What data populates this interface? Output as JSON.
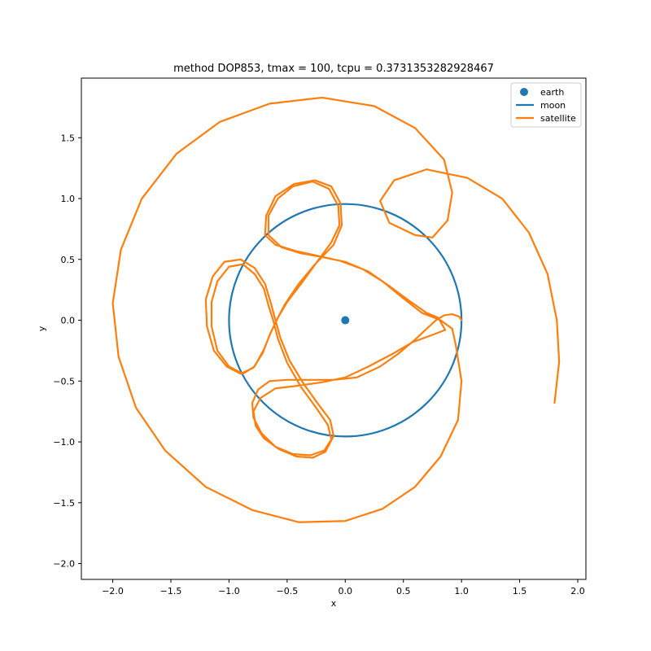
{
  "chart_data": {
    "type": "line",
    "title": "method DOP853, tmax = 100, tcpu = 0.3731353282928467",
    "xlabel": "x",
    "ylabel": "y",
    "xlim": [
      -2.27,
      2.07
    ],
    "ylim": [
      -2.13,
      1.99
    ],
    "x_ticks": [
      -2.0,
      -1.5,
      -1.0,
      -0.5,
      0.0,
      0.5,
      1.0,
      1.5,
      2.0
    ],
    "x_tick_labels": [
      "−2.0",
      "−1.5",
      "−1.0",
      "−0.5",
      "0.0",
      "0.5",
      "1.0",
      "1.5",
      "2.0"
    ],
    "y_ticks": [
      -2.0,
      -1.5,
      -1.0,
      -0.5,
      0.0,
      0.5,
      1.0,
      1.5
    ],
    "y_tick_labels": [
      "−2.0",
      "−1.5",
      "−1.0",
      "−0.5",
      "0.0",
      "0.5",
      "1.0",
      "1.5"
    ],
    "grid": false,
    "legend_position": "top-right",
    "series": [
      {
        "name": "earth",
        "kind": "scatter",
        "color": "#1f77b4",
        "points": [
          [
            0.0,
            0.0
          ]
        ]
      },
      {
        "name": "moon",
        "kind": "circle",
        "color": "#1f77b4",
        "center": [
          0.0,
          0.0
        ],
        "radius": 1.0
      },
      {
        "name": "satellite",
        "kind": "line",
        "color": "#ff7f0e",
        "points": [
          [
            1.0,
            0.0
          ],
          [
            0.98,
            0.03
          ],
          [
            0.92,
            0.05
          ],
          [
            0.85,
            0.04
          ],
          [
            0.78,
            0.0
          ],
          [
            0.7,
            -0.07
          ],
          [
            0.6,
            -0.16
          ],
          [
            0.45,
            -0.28
          ],
          [
            0.3,
            -0.38
          ],
          [
            0.1,
            -0.47
          ],
          [
            -0.1,
            -0.49
          ],
          [
            -0.3,
            -0.49
          ],
          [
            -0.5,
            -0.49
          ],
          [
            -0.65,
            -0.5
          ],
          [
            -0.75,
            -0.57
          ],
          [
            -0.8,
            -0.68
          ],
          [
            -0.79,
            -0.8
          ],
          [
            -0.72,
            -0.93
          ],
          [
            -0.6,
            -1.04
          ],
          [
            -0.45,
            -1.1
          ],
          [
            -0.3,
            -1.11
          ],
          [
            -0.18,
            -1.07
          ],
          [
            -0.12,
            -0.98
          ],
          [
            -0.15,
            -0.86
          ],
          [
            -0.25,
            -0.72
          ],
          [
            -0.38,
            -0.55
          ],
          [
            -0.5,
            -0.35
          ],
          [
            -0.58,
            -0.15
          ],
          [
            -0.62,
            0.0
          ],
          [
            -0.66,
            0.12
          ],
          [
            -0.7,
            0.26
          ],
          [
            -0.78,
            0.38
          ],
          [
            -0.88,
            0.46
          ],
          [
            -1.0,
            0.44
          ],
          [
            -1.1,
            0.32
          ],
          [
            -1.15,
            0.15
          ],
          [
            -1.15,
            -0.05
          ],
          [
            -1.1,
            -0.25
          ],
          [
            -1.0,
            -0.38
          ],
          [
            -0.88,
            -0.44
          ],
          [
            -0.78,
            -0.38
          ],
          [
            -0.7,
            -0.24
          ],
          [
            -0.64,
            -0.1
          ],
          [
            -0.58,
            0.02
          ],
          [
            -0.5,
            0.15
          ],
          [
            -0.38,
            0.3
          ],
          [
            -0.25,
            0.47
          ],
          [
            -0.12,
            0.64
          ],
          [
            -0.05,
            0.78
          ],
          [
            -0.06,
            0.94
          ],
          [
            -0.14,
            1.08
          ],
          [
            -0.28,
            1.14
          ],
          [
            -0.45,
            1.1
          ],
          [
            -0.58,
            1.0
          ],
          [
            -0.66,
            0.86
          ],
          [
            -0.66,
            0.7
          ],
          [
            -0.55,
            0.6
          ],
          [
            -0.38,
            0.55
          ],
          [
            -0.2,
            0.52
          ],
          [
            0.0,
            0.48
          ],
          [
            0.2,
            0.4
          ],
          [
            0.38,
            0.28
          ],
          [
            0.55,
            0.16
          ],
          [
            0.7,
            0.06
          ],
          [
            0.8,
            0.02
          ],
          [
            0.86,
            -0.08
          ],
          [
            0.75,
            -0.12
          ],
          [
            0.58,
            -0.18
          ],
          [
            0.4,
            -0.28
          ],
          [
            0.2,
            -0.38
          ],
          [
            0.0,
            -0.47
          ],
          [
            -0.2,
            -0.51
          ],
          [
            -0.42,
            -0.54
          ],
          [
            -0.6,
            -0.56
          ],
          [
            -0.73,
            -0.64
          ],
          [
            -0.79,
            -0.75
          ],
          [
            -0.77,
            -0.87
          ],
          [
            -0.7,
            -0.97
          ],
          [
            -0.57,
            -1.06
          ],
          [
            -0.42,
            -1.12
          ],
          [
            -0.28,
            -1.13
          ],
          [
            -0.17,
            -1.08
          ],
          [
            -0.1,
            -0.95
          ],
          [
            -0.13,
            -0.82
          ],
          [
            -0.24,
            -0.68
          ],
          [
            -0.36,
            -0.52
          ],
          [
            -0.48,
            -0.33
          ],
          [
            -0.56,
            -0.14
          ],
          [
            -0.6,
            0.0
          ],
          [
            -0.64,
            0.14
          ],
          [
            -0.69,
            0.3
          ],
          [
            -0.78,
            0.43
          ],
          [
            -0.9,
            0.5
          ],
          [
            -1.04,
            0.48
          ],
          [
            -1.14,
            0.36
          ],
          [
            -1.2,
            0.17
          ],
          [
            -1.19,
            -0.05
          ],
          [
            -1.13,
            -0.25
          ],
          [
            -1.02,
            -0.38
          ],
          [
            -0.9,
            -0.44
          ],
          [
            -0.79,
            -0.39
          ],
          [
            -0.71,
            -0.27
          ],
          [
            -0.65,
            -0.12
          ],
          [
            -0.59,
            0.0
          ],
          [
            -0.52,
            0.13
          ],
          [
            -0.4,
            0.3
          ],
          [
            -0.26,
            0.46
          ],
          [
            -0.1,
            0.62
          ],
          [
            -0.03,
            0.78
          ],
          [
            -0.04,
            0.96
          ],
          [
            -0.12,
            1.1
          ],
          [
            -0.26,
            1.15
          ],
          [
            -0.44,
            1.12
          ],
          [
            -0.6,
            1.02
          ],
          [
            -0.68,
            0.86
          ],
          [
            -0.69,
            0.7
          ],
          [
            -0.6,
            0.62
          ],
          [
            -0.43,
            0.57
          ],
          [
            -0.24,
            0.53
          ],
          [
            -0.05,
            0.49
          ],
          [
            0.15,
            0.42
          ],
          [
            0.32,
            0.32
          ],
          [
            0.5,
            0.18
          ],
          [
            0.66,
            0.06
          ],
          [
            0.82,
            0.0
          ],
          [
            0.92,
            -0.07
          ],
          [
            0.95,
            -0.2
          ],
          [
            1.0,
            -0.5
          ],
          [
            0.97,
            -0.82
          ],
          [
            0.82,
            -1.12
          ],
          [
            0.6,
            -1.37
          ],
          [
            0.32,
            -1.55
          ],
          [
            0.0,
            -1.65
          ],
          [
            -0.4,
            -1.66
          ],
          [
            -0.8,
            -1.56
          ],
          [
            -1.2,
            -1.37
          ],
          [
            -1.55,
            -1.07
          ],
          [
            -1.8,
            -0.72
          ],
          [
            -1.95,
            -0.3
          ],
          [
            -2.0,
            0.14
          ],
          [
            -1.93,
            0.58
          ],
          [
            -1.75,
            1.0
          ],
          [
            -1.45,
            1.37
          ],
          [
            -1.08,
            1.63
          ],
          [
            -0.65,
            1.78
          ],
          [
            -0.2,
            1.83
          ],
          [
            0.25,
            1.76
          ],
          [
            0.6,
            1.58
          ],
          [
            0.85,
            1.32
          ],
          [
            0.92,
            1.05
          ],
          [
            0.88,
            0.82
          ],
          [
            0.75,
            0.68
          ],
          [
            0.6,
            0.7
          ],
          [
            0.38,
            0.8
          ],
          [
            0.3,
            0.98
          ],
          [
            0.42,
            1.15
          ],
          [
            0.7,
            1.24
          ],
          [
            1.05,
            1.17
          ],
          [
            1.35,
            1.0
          ],
          [
            1.58,
            0.72
          ],
          [
            1.74,
            0.38
          ],
          [
            1.82,
            0.0
          ],
          [
            1.84,
            -0.34
          ],
          [
            1.8,
            -0.68
          ]
        ]
      }
    ]
  }
}
